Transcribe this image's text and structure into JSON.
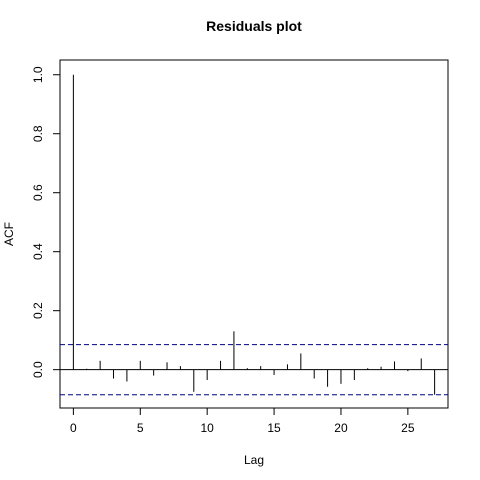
{
  "chart_data": {
    "type": "bar",
    "title": "Residuals plot",
    "xlabel": "Lag",
    "ylabel": "ACF",
    "xlim": [
      -1,
      28
    ],
    "ylim": [
      -0.13,
      1.05
    ],
    "x_ticks": [
      0,
      5,
      10,
      15,
      20,
      25
    ],
    "x_tick_labels": [
      "0",
      "5",
      "10",
      "15",
      "20",
      "25"
    ],
    "y_ticks": [
      0.0,
      0.2,
      0.4,
      0.6,
      0.8,
      1.0
    ],
    "y_tick_labels": [
      "0.0",
      "0.2",
      "0.4",
      "0.6",
      "0.8",
      "1.0"
    ],
    "confidence_bounds": [
      0.085,
      -0.085
    ],
    "lags": [
      0,
      1,
      2,
      3,
      4,
      5,
      6,
      7,
      8,
      9,
      10,
      11,
      12,
      13,
      14,
      15,
      16,
      17,
      18,
      19,
      20,
      21,
      22,
      23,
      24,
      25,
      26,
      27
    ],
    "acf": [
      1.0,
      0.003,
      0.03,
      -0.03,
      -0.04,
      0.03,
      -0.02,
      0.025,
      0.012,
      -0.075,
      -0.035,
      0.03,
      0.13,
      0.005,
      0.012,
      -0.018,
      0.018,
      0.055,
      -0.03,
      -0.058,
      -0.048,
      -0.035,
      0.005,
      0.01,
      0.028,
      -0.005,
      0.038,
      -0.085
    ],
    "grid": false,
    "legend": "none",
    "colors": {
      "spike": "#000000",
      "bounds": "#00008b",
      "zero_line": "#000000"
    }
  }
}
